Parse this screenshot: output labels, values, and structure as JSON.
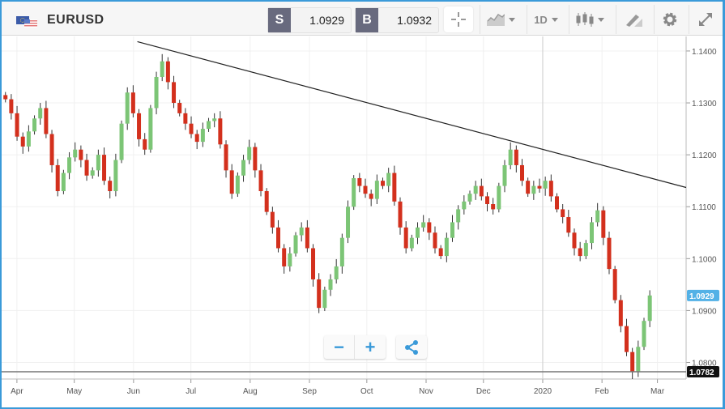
{
  "header": {
    "symbol": "EURUSD",
    "sell_label": "S",
    "sell_price": "1.0929",
    "buy_label": "B",
    "buy_price": "1.0932",
    "timeframe": "1D",
    "icons": [
      "crosshair-icon",
      "chart-type-icon",
      "timeframe-dropdown",
      "candlestick-icon",
      "drawing-tool-icon",
      "gear-icon",
      "expand-icon"
    ]
  },
  "colors": {
    "up": "#7cc576",
    "down": "#d3301d",
    "accent": "#3a9ad9",
    "current_label": "#53b1e6",
    "low_label": "#111111",
    "trendline": "#222222"
  },
  "controls": {
    "zoom_out": "−",
    "zoom_in": "+",
    "share": "share-icon"
  },
  "chart_data": {
    "type": "candlestick",
    "date_range": [
      "2019-03-24",
      "2020-03-16"
    ],
    "candle_dates": [
      "2019-03-26",
      "2020-02-26"
    ],
    "ylim": [
      1.0768,
      1.1428
    ],
    "yticks": [
      "1.1400",
      "1.1300",
      "1.1200",
      "1.1100",
      "1.1000",
      "1.0900",
      "1.0800"
    ],
    "xticks": [
      {
        "label": "Apr",
        "date": "2019-04-01"
      },
      {
        "label": "May",
        "date": "2019-05-01"
      },
      {
        "label": "Jun",
        "date": "2019-06-01"
      },
      {
        "label": "Jul",
        "date": "2019-07-01"
      },
      {
        "label": "Aug",
        "date": "2019-08-01"
      },
      {
        "label": "Sep",
        "date": "2019-09-01"
      },
      {
        "label": "Oct",
        "date": "2019-10-01"
      },
      {
        "label": "Nov",
        "date": "2019-11-01"
      },
      {
        "label": "Dec",
        "date": "2019-12-01"
      },
      {
        "label": "2020",
        "date": "2020-01-01"
      },
      {
        "label": "Feb",
        "date": "2020-02-01"
      },
      {
        "label": "Mar",
        "date": "2020-03-01"
      }
    ],
    "grid": true,
    "closes": [
      1.1307,
      1.128,
      1.1235,
      1.1216,
      1.1245,
      1.127,
      1.129,
      1.124,
      1.118,
      1.113,
      1.1165,
      1.1195,
      1.121,
      1.119,
      1.116,
      1.117,
      1.12,
      1.115,
      1.113,
      1.119,
      1.126,
      1.132,
      1.128,
      1.123,
      1.121,
      1.129,
      1.135,
      1.138,
      1.134,
      1.13,
      1.128,
      1.126,
      1.124,
      1.1225,
      1.125,
      1.1265,
      1.127,
      1.122,
      1.117,
      1.1125,
      1.116,
      1.119,
      1.1215,
      1.117,
      1.113,
      1.109,
      1.106,
      1.102,
      1.0985,
      1.101,
      1.1045,
      1.106,
      1.102,
      1.096,
      1.0905,
      1.094,
      1.096,
      1.0985,
      1.104,
      1.11,
      1.1155,
      1.114,
      1.1125,
      1.1115,
      1.115,
      1.114,
      1.1165,
      1.111,
      1.106,
      1.102,
      1.104,
      1.106,
      1.107,
      1.105,
      1.102,
      1.1005,
      1.104,
      1.107,
      1.1095,
      1.111,
      1.1125,
      1.114,
      1.112,
      1.1105,
      1.1095,
      1.114,
      1.118,
      1.121,
      1.118,
      1.115,
      1.1125,
      1.114,
      1.1135,
      1.115,
      1.112,
      1.1095,
      1.108,
      1.105,
      1.102,
      1.1005,
      1.103,
      1.107,
      1.1093,
      1.104,
      1.098,
      1.092,
      1.087,
      1.082,
      1.0782,
      1.083,
      1.088,
      1.0929
    ],
    "trendline": [
      {
        "date": "2019-06-03",
        "price": 1.1418
      },
      {
        "date": "2020-03-16",
        "price": 1.1137
      }
    ],
    "crosshair_date": "2020-01-01",
    "current_price": {
      "label": "1.0929",
      "value": 1.0929
    },
    "low_line": {
      "label": "1.0782",
      "value": 1.0782
    }
  }
}
